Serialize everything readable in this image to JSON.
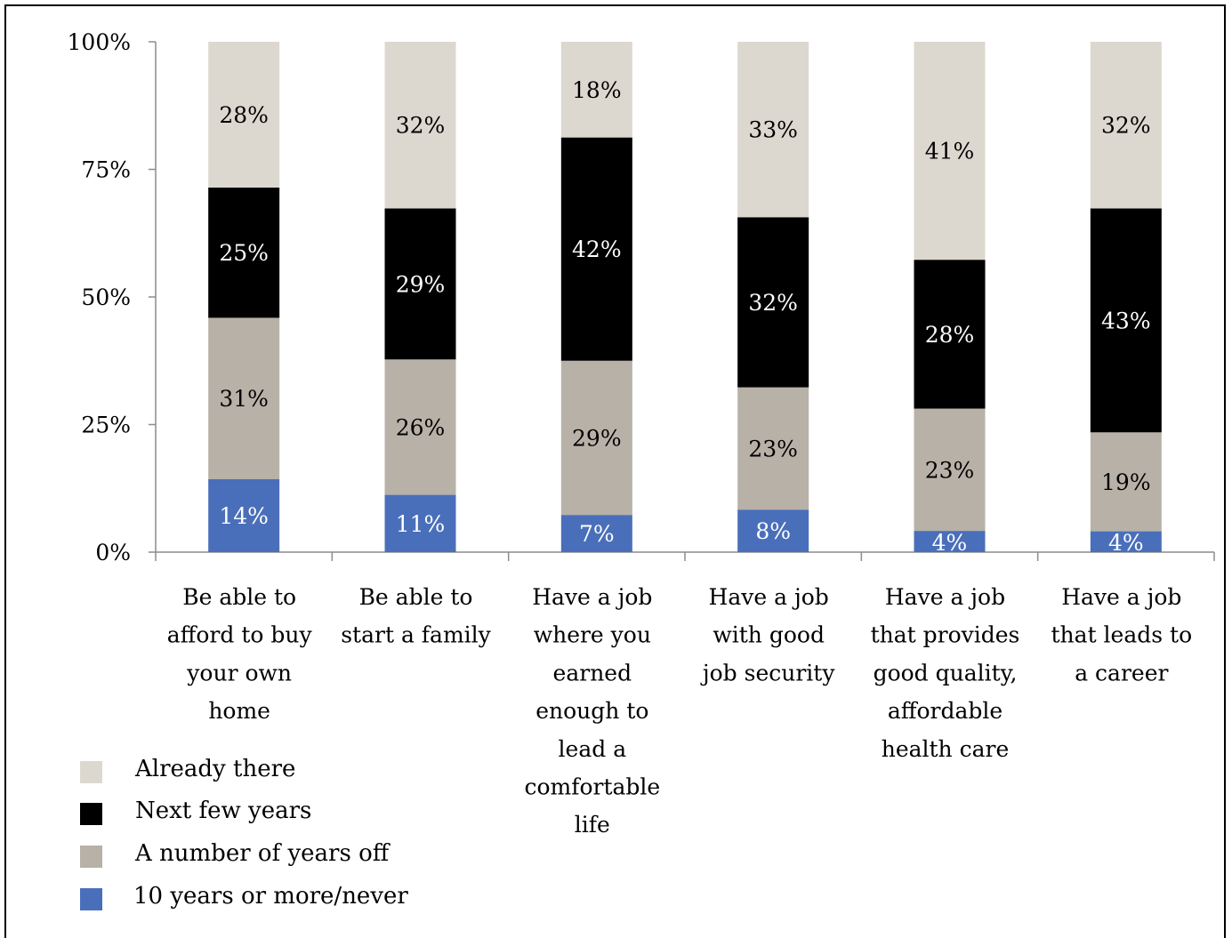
{
  "chart_data": {
    "type": "bar",
    "stacked": true,
    "title": "",
    "xlabel": "",
    "ylabel": "",
    "ylim": [
      0,
      100
    ],
    "yticks": [
      "0%",
      "25%",
      "50%",
      "75%",
      "100%"
    ],
    "grid": false,
    "legend_position": "bottom-left",
    "categories": [
      "Be able to afford to buy your own home",
      "Be able to start a family",
      "Have a job where you earned enough to lead a comfortable life",
      "Have a job with good job security",
      "Have a job that provides good quality, affordable health care",
      "Have a job that leads to a career"
    ],
    "category_lines": [
      [
        "Be able to",
        "afford to buy",
        "your own",
        "home"
      ],
      [
        "Be able to",
        "start a family"
      ],
      [
        "Have a job",
        "where you",
        "earned",
        "enough to",
        "lead a",
        "comfortable",
        "life"
      ],
      [
        "Have a job",
        "with good",
        "job security"
      ],
      [
        "Have a job",
        "that provides",
        "good quality,",
        "affordable",
        "health care"
      ],
      [
        "Have a job",
        "that leads to",
        "a career"
      ]
    ],
    "series": [
      {
        "name": "10 years or more/never",
        "color": "#4a6fba",
        "label_color": "#ffffff",
        "values": [
          14,
          11,
          7,
          8,
          4,
          4
        ],
        "labels": [
          "14%",
          "11%",
          "7%",
          "8%",
          "4%",
          "4%"
        ]
      },
      {
        "name": "A number of years off",
        "color": "#b8b1a7",
        "label_color": "#000000",
        "values": [
          31,
          26,
          29,
          23,
          23,
          19
        ],
        "labels": [
          "31%",
          "26%",
          "29%",
          "23%",
          "23%",
          "19%"
        ]
      },
      {
        "name": "Next few years",
        "color": "#000000",
        "label_color": "#ffffff",
        "values": [
          25,
          29,
          42,
          32,
          28,
          43
        ],
        "labels": [
          "25%",
          "29%",
          "42%",
          "32%",
          "28%",
          "43%"
        ]
      },
      {
        "name": "Already there",
        "color": "#ddd8cf",
        "label_color": "#000000",
        "values": [
          28,
          32,
          18,
          33,
          41,
          32
        ],
        "labels": [
          "28%",
          "32%",
          "18%",
          "33%",
          "41%",
          "32%"
        ]
      }
    ],
    "legend_order": [
      "Already there",
      "Next few years",
      "A number of years off",
      "10 years or more/never"
    ]
  }
}
